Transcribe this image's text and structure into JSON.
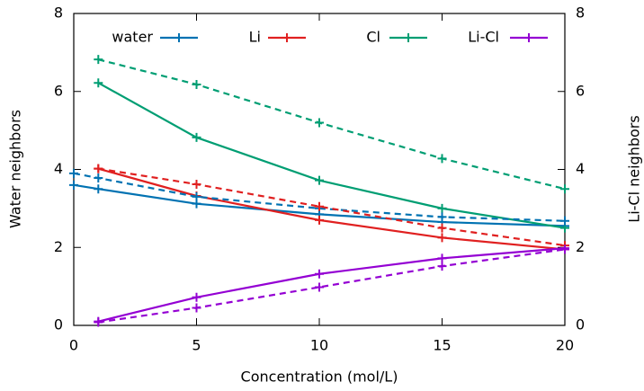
{
  "chart_data": {
    "type": "line",
    "xlabel": "Concentration (mol/L)",
    "ylabel": "Water neighbors",
    "y2label": "Li-Cl neighbors",
    "xlim": [
      0,
      20
    ],
    "xticks": [
      0,
      5,
      10,
      15,
      20
    ],
    "ylim": [
      0,
      8
    ],
    "yticks": [
      0,
      2,
      4,
      6,
      8
    ],
    "y2lim": [
      0,
      8
    ],
    "y2ticks": [
      0,
      2,
      4,
      6,
      8
    ],
    "series": [
      {
        "name": "water",
        "color": "#0072b2",
        "x": [
          0,
          1,
          5,
          10,
          15,
          20
        ],
        "values": [
          3.6,
          3.5,
          3.12,
          2.85,
          2.65,
          2.55
        ]
      },
      {
        "name": "Li",
        "color": "#e02020",
        "x": [
          1,
          5,
          10,
          15,
          20
        ],
        "values": [
          4.02,
          3.32,
          2.7,
          2.25,
          1.95
        ]
      },
      {
        "name": "Cl",
        "color": "#009e73",
        "x": [
          1,
          5,
          10,
          15,
          20
        ],
        "values": [
          6.22,
          4.82,
          3.72,
          3.0,
          2.5
        ]
      },
      {
        "name": "Li-Cl",
        "color": "#9400d3",
        "axis": "y2",
        "x": [
          1,
          5,
          10,
          15,
          20
        ],
        "values": [
          0.1,
          0.72,
          1.32,
          1.72,
          1.98
        ]
      },
      {
        "color": "#0072b2",
        "dash": true,
        "x": [
          0,
          1,
          5,
          10,
          15,
          20
        ],
        "values": [
          3.9,
          3.78,
          3.3,
          3.0,
          2.78,
          2.68
        ]
      },
      {
        "color": "#e02020",
        "dash": true,
        "x": [
          1,
          5,
          10,
          15,
          20
        ],
        "values": [
          4.02,
          3.62,
          3.05,
          2.5,
          2.05
        ]
      },
      {
        "color": "#009e73",
        "dash": true,
        "x": [
          1,
          5,
          10,
          15,
          20
        ],
        "values": [
          6.82,
          6.18,
          5.2,
          4.28,
          3.5
        ]
      },
      {
        "color": "#9400d3",
        "dash": true,
        "axis": "y2",
        "x": [
          1,
          5,
          10,
          15,
          20
        ],
        "values": [
          0.08,
          0.45,
          0.98,
          1.52,
          1.95
        ]
      }
    ]
  }
}
